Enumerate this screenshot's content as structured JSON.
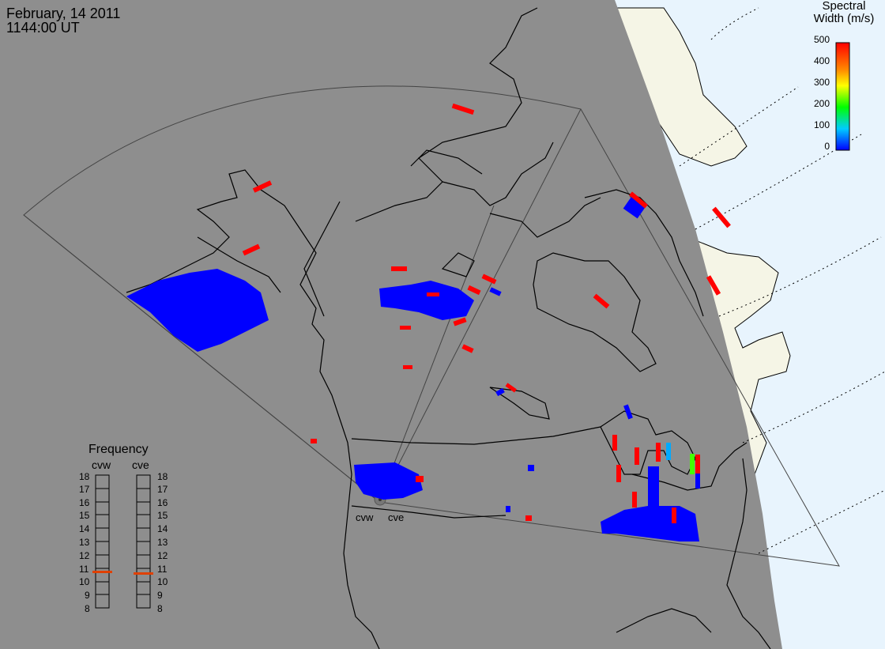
{
  "header": {
    "date": "February, 14 2011",
    "time": "1144:00 UT"
  },
  "colorbar": {
    "title_line1": "Spectral",
    "title_line2": "Width (m/s)",
    "ticks": [
      "500",
      "400",
      "300",
      "200",
      "100",
      "0"
    ]
  },
  "frequency_panel": {
    "title": "Frequency",
    "radars": [
      {
        "name": "cvw",
        "frequency_mhz": 10.8
      },
      {
        "name": "cve",
        "frequency_mhz": 10.8
      }
    ],
    "ticks": [
      "18",
      "17",
      "16",
      "15",
      "14",
      "13",
      "12",
      "11",
      "10",
      "9",
      "8"
    ]
  },
  "map": {
    "site_labels": [
      "cvw",
      "cve"
    ],
    "colors": {
      "nightside": "#8e8e8e",
      "dayside_land": "#f5f5e6",
      "dayside_ocean": "#e8f4fd",
      "coastline": "#000000",
      "scatter_low": "#0000ff",
      "scatter_high": "#ff0000",
      "scatter_mid": "#44ff00",
      "frequency_marker": "#e04000"
    }
  }
}
